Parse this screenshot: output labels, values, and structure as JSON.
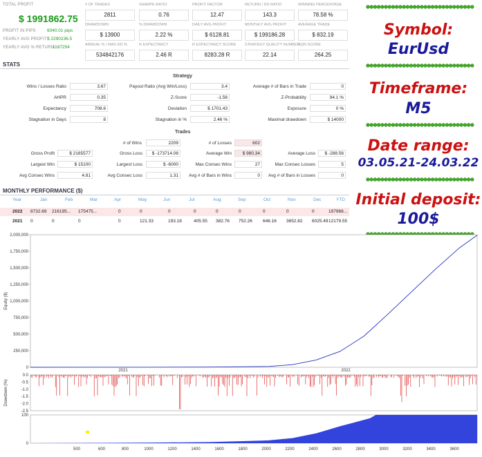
{
  "summary": {
    "total_profit_label": "TOTAL PROFIT",
    "total_profit": "$ 1991862.75",
    "profit_pips_label": "PROFIT IN PIPS",
    "profit_pips": "6040.01 pips",
    "yearly_avg_profit_label": "YEARLY AVG PROFIT",
    "yearly_avg_profit": "$ 2290236.5",
    "yearly_avg_return_label": "YEARLY AVG % RETURN",
    "yearly_avg_return": "1187254",
    "cells": [
      {
        "label": "# OF TRADES",
        "value": "2811"
      },
      {
        "label": "SHARPE RATIO",
        "value": "0.76"
      },
      {
        "label": "PROFIT FACTOR",
        "value": "12.47"
      },
      {
        "label": "RETURN / DD RATIO",
        "value": "143.3"
      },
      {
        "label": "WINNING PERCENTAGE",
        "value": "78.58 %"
      },
      {
        "label": "DRAWDOWN",
        "value": "$ 13900"
      },
      {
        "label": "% DRAWDOWN",
        "value": "2.22 %"
      },
      {
        "label": "DAILY AVG PROFIT",
        "value": "$ 6128.81"
      },
      {
        "label": "MONTHLY AVG PROFIT",
        "value": "$ 199186.28"
      },
      {
        "label": "AVERAGE TRADE",
        "value": "$ 832.19"
      },
      {
        "label": "ANNUAL % / MAX DD %",
        "value": "534842176"
      },
      {
        "label": "R EXPECTANCY",
        "value": "2.46 R"
      },
      {
        "label": "R EXPECTANCY SCORE",
        "value": "8283.28 R"
      },
      {
        "label": "STRATEGY QUALITY NUMBER",
        "value": "22.14"
      },
      {
        "label": "SQN SCORE",
        "value": "264.25"
      }
    ]
  },
  "stats": {
    "title": "STATS",
    "strategy_title": "Strategy",
    "strategy": [
      {
        "label": "Wins / Losses Ratio",
        "value": "3.67"
      },
      {
        "label": "AHPR",
        "value": "0.35"
      },
      {
        "label": "Expectancy",
        "value": "708.6"
      },
      {
        "label": "Stagnation in Days",
        "value": "8"
      },
      {
        "label": "Payout Ratio (Avg Win/Loss)",
        "value": "3.4"
      },
      {
        "label": "Z-Score",
        "value": "-1.56"
      },
      {
        "label": "Deviation",
        "value": "$ 1701.43"
      },
      {
        "label": "Stagnation in %",
        "value": "2.46 %"
      },
      {
        "label": "Average # of Bars in Trade",
        "value": "0"
      },
      {
        "label": "Z-Probability",
        "value": "94.1 %"
      },
      {
        "label": "Exposure",
        "value": "0 %"
      },
      {
        "label": "Maximal drawdown",
        "value": "$ 14000"
      }
    ],
    "trades_title": "Trades",
    "wins_label": "# of Wins",
    "wins_value": "2209",
    "losses_label": "# of Losses",
    "losses_value": "602",
    "trades": [
      {
        "label": "Gross Profit",
        "value": "$ 2165577"
      },
      {
        "label": "Largest Win",
        "value": "$ 15100"
      },
      {
        "label": "Avg Consec Wins",
        "value": "4.81"
      },
      {
        "label": "Gross Loss",
        "value": "$ -173714.08"
      },
      {
        "label": "Largest Loss",
        "value": "$ -6000"
      },
      {
        "label": "Avg Consec Loss",
        "value": "1.31"
      },
      {
        "label": "Average Win",
        "value": "$ 980.34"
      },
      {
        "label": "Max Consec Wins",
        "value": "27"
      },
      {
        "label": "Avg # of Bars in Wins",
        "value": "0"
      },
      {
        "label": "Average Loss",
        "value": "$ -288.56"
      },
      {
        "label": "Max Consec Losses",
        "value": "5"
      },
      {
        "label": "Avg # of Bars in Losses",
        "value": "0"
      }
    ]
  },
  "monthly": {
    "title": "MONTHLY PERFORMANCE ($)",
    "headers": [
      "Year",
      "Jan",
      "Feb",
      "Mar",
      "Apr",
      "May",
      "Jun",
      "Jul",
      "Aug",
      "Sep",
      "Oct",
      "Nov",
      "Dec",
      "YTD"
    ],
    "rows": [
      [
        "2022",
        "8732.69",
        "216195...",
        "175475...",
        "0",
        "0",
        "0",
        "0",
        "0",
        "0",
        "0",
        "0",
        "0",
        "197968..."
      ],
      [
        "2021",
        "0",
        "0",
        "0",
        "0",
        "121.33",
        "193.18",
        "405.55",
        "382.76",
        "752.26",
        "646.16",
        "3652.82",
        "6025.49",
        "12179.55"
      ]
    ]
  },
  "right_panel": {
    "symbol_label": "Symbol:",
    "symbol_value": "EurUsd",
    "timeframe_label": "Timeframe:",
    "timeframe_value": "M5",
    "date_label": "Date range:",
    "date_value": "03.05.21-24.03.22",
    "deposit_label": "Initial deposit:",
    "deposit_value": "100$"
  },
  "chart_data": [
    {
      "type": "line",
      "ylabel": "Equity ($)",
      "yticks": [
        "0",
        "250,000",
        "500,000",
        "750,000",
        "1,000,000",
        "1,250,000",
        "1,500,000",
        "1,750,000",
        "2,000,000"
      ],
      "ylim": [
        0,
        2000000
      ],
      "xtick_labels": [
        "2021",
        "2022"
      ],
      "series": [
        {
          "x": [
            0,
            500,
            1000,
            1500,
            2000,
            2200,
            2400,
            2600,
            2800,
            3000,
            3200,
            3400,
            3600,
            3750
          ],
          "values": [
            100,
            300,
            1000,
            3000,
            12000,
            40000,
            110000,
            240000,
            470000,
            800000,
            1140000,
            1480000,
            1800000,
            1991962
          ]
        }
      ],
      "color": "#2233bb"
    },
    {
      "type": "bar",
      "ylabel": "Drawdown (%)",
      "yticks": [
        "0.0",
        "-0.5",
        "-1.0",
        "-1.5",
        "-2.0",
        "-2.5"
      ],
      "ylim": [
        -2.5,
        0
      ],
      "color": "#dd1111"
    },
    {
      "type": "area",
      "yticks": [
        "100",
        "75",
        "50",
        "25",
        "0"
      ],
      "ylim": [
        0,
        100
      ],
      "xticks": [
        "500",
        "600",
        "800",
        "1000",
        "1200",
        "1400",
        "1600",
        "1800",
        "2000",
        "2200",
        "2400",
        "2600",
        "2800",
        "3000",
        "3200",
        "3400",
        "3600"
      ],
      "series": [
        {
          "x": [
            0,
            500,
            1000,
            1500,
            2000,
            2200,
            2400,
            2600,
            2850,
            2900,
            3750
          ],
          "values": [
            0,
            1,
            2,
            4,
            10,
            18,
            35,
            60,
            88,
            100,
            100
          ]
        }
      ],
      "color": "#3344dd"
    }
  ]
}
